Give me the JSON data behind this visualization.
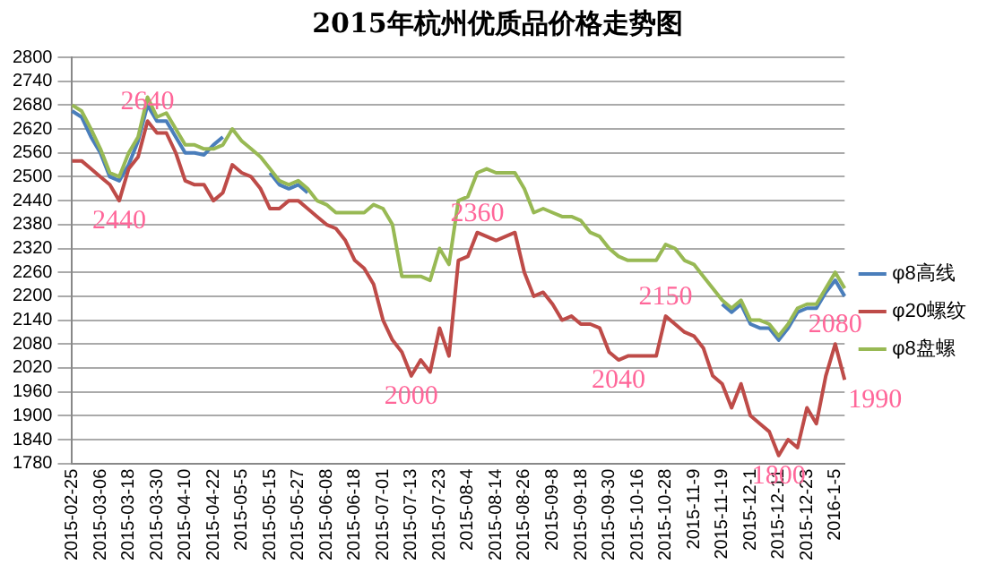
{
  "chart_data": {
    "type": "line",
    "title": "2015年杭州优质品价格走势图",
    "categories": [
      "2015-02-25",
      null,
      null,
      "2015-03-06",
      null,
      null,
      "2015-03-18",
      null,
      null,
      "2015-03-30",
      null,
      null,
      "2015-04-10",
      null,
      null,
      "2015-04-22",
      null,
      null,
      "2015-05-5",
      null,
      null,
      "2015-05-15",
      null,
      null,
      "2015-05-27",
      null,
      null,
      "2015-06-08",
      null,
      null,
      "2015-06-18",
      null,
      null,
      "2015-07-01",
      null,
      null,
      "2015-07-13",
      null,
      null,
      "2015-07-23",
      null,
      null,
      "2015-08-4",
      null,
      null,
      "2015-08-14",
      null,
      null,
      "2015-08-26",
      null,
      null,
      "2015-09-8",
      null,
      null,
      "2015-09-18",
      null,
      null,
      "2015-09-30",
      null,
      null,
      "2015-10-16",
      null,
      null,
      "2015-10-28",
      null,
      null,
      "2015-11-9",
      null,
      null,
      "2015-11-19",
      null,
      null,
      "2015-12-1",
      null,
      null,
      "2015-12-11",
      null,
      null,
      "2015-12-23",
      null,
      null,
      "2016-1-5",
      null
    ],
    "series": [
      {
        "name": "φ8高线",
        "color": "#4a7ebb",
        "values": [
          2665,
          2650,
          2600,
          2560,
          2500,
          2490,
          2530,
          2590,
          2680,
          2640,
          2640,
          2600,
          2560,
          2560,
          2555,
          2580,
          2600,
          null,
          null,
          null,
          null,
          2510,
          2480,
          2470,
          2480,
          2460,
          null,
          null,
          null,
          null,
          null,
          null,
          null,
          null,
          null,
          null,
          null,
          null,
          null,
          null,
          null,
          null,
          null,
          null,
          null,
          null,
          null,
          null,
          null,
          null,
          null,
          null,
          null,
          null,
          null,
          null,
          null,
          null,
          null,
          null,
          null,
          null,
          null,
          null,
          null,
          null,
          null,
          null,
          null,
          2180,
          2160,
          2180,
          2130,
          2120,
          2120,
          2090,
          2120,
          2160,
          2170,
          2170,
          2210,
          2240,
          2200
        ]
      },
      {
        "name": "φ20螺纹",
        "color": "#be4b48",
        "values": [
          2540,
          2540,
          2520,
          2500,
          2480,
          2440,
          2520,
          2550,
          2640,
          2610,
          2610,
          2560,
          2490,
          2480,
          2480,
          2440,
          2460,
          2530,
          2510,
          2500,
          2470,
          2420,
          2420,
          2440,
          2440,
          2420,
          2400,
          2380,
          2370,
          2340,
          2290,
          2270,
          2230,
          2140,
          2090,
          2060,
          2000,
          2040,
          2010,
          2120,
          2050,
          2290,
          2300,
          2360,
          2350,
          2340,
          2350,
          2360,
          2260,
          2200,
          2210,
          2180,
          2140,
          2150,
          2130,
          2130,
          2120,
          2060,
          2040,
          2050,
          2050,
          2050,
          2050,
          2150,
          2130,
          2110,
          2100,
          2070,
          2000,
          1980,
          1920,
          1980,
          1900,
          1880,
          1860,
          1800,
          1840,
          1820,
          1920,
          1880,
          2000,
          2080,
          1990
        ],
        "value_labels": [
          null,
          null,
          null,
          null,
          null,
          "2440",
          null,
          null,
          "2640",
          null,
          null,
          null,
          null,
          null,
          null,
          null,
          null,
          null,
          null,
          null,
          null,
          null,
          null,
          null,
          null,
          null,
          null,
          null,
          null,
          null,
          null,
          null,
          null,
          null,
          null,
          null,
          "2000",
          null,
          null,
          null,
          null,
          null,
          null,
          "2360",
          null,
          null,
          null,
          null,
          null,
          null,
          null,
          null,
          null,
          null,
          null,
          null,
          null,
          null,
          "2040",
          null,
          null,
          null,
          null,
          "2150",
          null,
          null,
          null,
          null,
          null,
          null,
          null,
          null,
          null,
          null,
          null,
          "1800",
          null,
          null,
          null,
          null,
          null,
          "2080",
          "1990"
        ]
      },
      {
        "name": "φ8盘螺",
        "color": "#98b954",
        "values": [
          2680,
          2665,
          2620,
          2570,
          2510,
          2500,
          2560,
          2600,
          2700,
          2650,
          2660,
          2620,
          2580,
          2580,
          2570,
          2570,
          2580,
          2620,
          2590,
          2570,
          2550,
          2520,
          2490,
          2480,
          2490,
          2470,
          2440,
          2430,
          2410,
          2410,
          2410,
          2410,
          2430,
          2420,
          2380,
          2250,
          2250,
          2250,
          2240,
          2320,
          2280,
          2440,
          2450,
          2510,
          2520,
          2510,
          2510,
          2510,
          2470,
          2410,
          2420,
          2410,
          2400,
          2400,
          2390,
          2360,
          2350,
          2320,
          2300,
          2290,
          2290,
          2290,
          2290,
          2330,
          2320,
          2290,
          2280,
          2250,
          2220,
          2190,
          2170,
          2190,
          2140,
          2140,
          2130,
          2100,
          2130,
          2170,
          2180,
          2180,
          2220,
          2260,
          2220
        ]
      }
    ],
    "ylim": [
      1780,
      2800
    ],
    "yticks": [
      1780,
      1840,
      1900,
      1960,
      2020,
      2080,
      2140,
      2200,
      2260,
      2320,
      2380,
      2440,
      2500,
      2560,
      2620,
      2680,
      2740,
      2800
    ],
    "grid": "y",
    "legend": "right",
    "marker": "none",
    "line_style": "solid"
  }
}
